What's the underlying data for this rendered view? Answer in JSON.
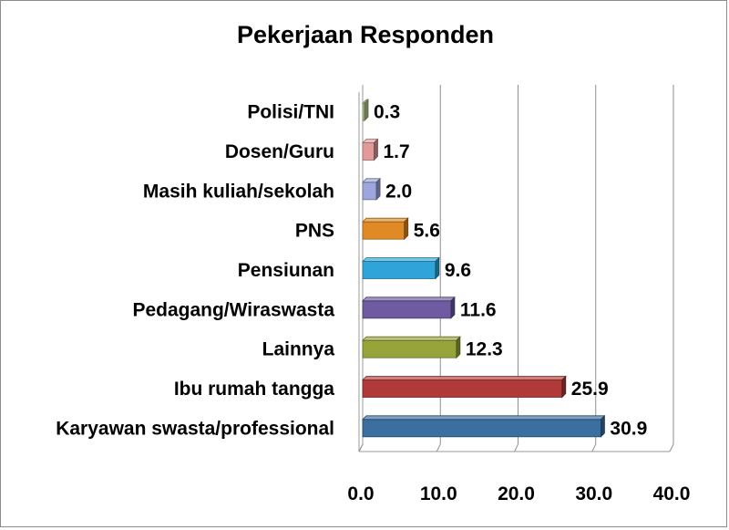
{
  "chart_data": {
    "type": "bar",
    "orientation": "horizontal",
    "title": "Pekerjaan Responden",
    "categories": [
      "Karyawan swasta/professional",
      "Ibu rumah tangga",
      "Lainnya",
      "Pedagang/Wiraswasta",
      "Pensiunan",
      "PNS",
      "Masih kuliah/sekolah",
      "Dosen/Guru",
      "Polisi/TNI"
    ],
    "values": [
      30.9,
      25.9,
      12.3,
      11.6,
      9.6,
      5.6,
      2.0,
      1.7,
      0.3
    ],
    "value_labels": [
      "30.9",
      "25.9",
      "12.3",
      "11.6",
      "9.6",
      "5.6",
      "2.0",
      "1.7",
      "0.3"
    ],
    "colors": [
      "#3b6fa0",
      "#b03a3a",
      "#97a43a",
      "#6f5ba2",
      "#2ea4d8",
      "#e08a26",
      "#9da6dd",
      "#e09a9a",
      "#b5c98a"
    ],
    "xlim": [
      0,
      40
    ],
    "xticks": [
      "0.0",
      "10.0",
      "20.0",
      "30.0",
      "40.0"
    ],
    "xtick_values": [
      0,
      10,
      20,
      30,
      40
    ],
    "grid": true,
    "legend": "none",
    "style": "3d"
  }
}
